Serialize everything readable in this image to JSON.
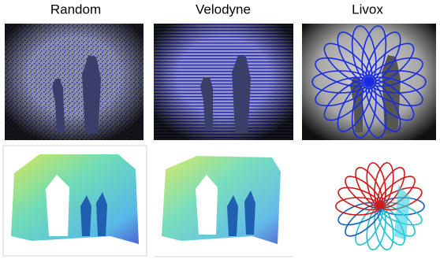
{
  "columns": [
    {
      "title": "Random"
    },
    {
      "title": "Velodyne"
    },
    {
      "title": "Livox"
    }
  ]
}
